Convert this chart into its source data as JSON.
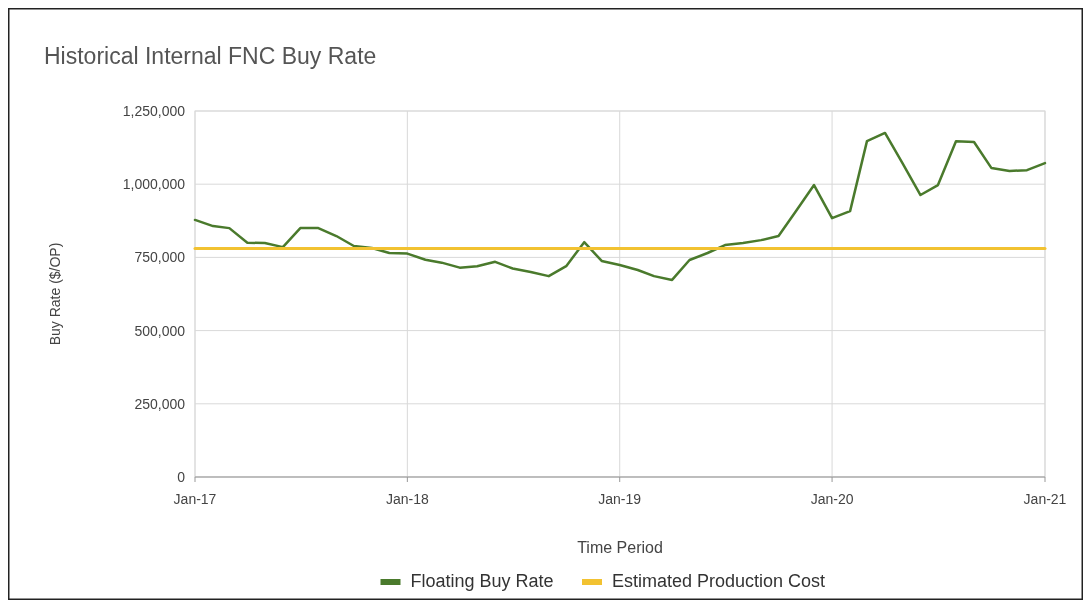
{
  "chart_data": {
    "type": "line",
    "title": "Historical Internal FNC Buy Rate",
    "xlabel": "Time Period",
    "ylabel": "Buy Rate ($/OP)",
    "x": [
      "2017-01",
      "2017-02",
      "2017-03",
      "2017-04",
      "2017-05",
      "2017-06",
      "2017-07",
      "2017-08",
      "2017-09",
      "2017-10",
      "2017-11",
      "2017-12",
      "2018-01",
      "2018-02",
      "2018-03",
      "2018-04",
      "2018-05",
      "2018-06",
      "2018-07",
      "2018-08",
      "2018-09",
      "2018-10",
      "2018-11",
      "2018-12",
      "2019-01",
      "2019-02",
      "2019-03",
      "2019-04",
      "2019-05",
      "2019-06",
      "2019-07",
      "2019-08",
      "2019-09",
      "2019-10",
      "2019-11",
      "2019-12",
      "2020-01",
      "2020-02",
      "2020-03",
      "2020-04",
      "2020-05",
      "2020-06",
      "2020-07",
      "2020-08",
      "2020-09",
      "2020-10",
      "2020-11",
      "2020-12",
      "2021-01"
    ],
    "series": [
      {
        "name": "Floating Buy Rate",
        "color": "#4a7a2c",
        "values": [
          878000,
          857000,
          850000,
          800000,
          799000,
          785000,
          850000,
          850000,
          823000,
          789000,
          782000,
          765000,
          763000,
          742000,
          732000,
          715000,
          720000,
          735000,
          712000,
          700000,
          686000,
          720000,
          802000,
          738000,
          724000,
          707000,
          686000,
          673000,
          741000,
          765000,
          792000,
          799000,
          809000,
          823000,
          911000,
          997000,
          884000,
          908000,
          1147000,
          1175000,
          1072000,
          963000,
          997000,
          1147000,
          1144000,
          1055000,
          1045000,
          1048000,
          1072000
        ]
      },
      {
        "name": "Estimated Production Cost",
        "color": "#f2c231",
        "x": [
          "2017-01",
          "2021-01"
        ],
        "values": [
          780000,
          780000
        ]
      }
    ],
    "xlim": [
      "2017-01",
      "2021-01"
    ],
    "xticks": [
      {
        "value": "2017-01",
        "label": "Jan-17"
      },
      {
        "value": "2018-01",
        "label": "Jan-18"
      },
      {
        "value": "2019-01",
        "label": "Jan-19"
      },
      {
        "value": "2020-01",
        "label": "Jan-20"
      },
      {
        "value": "2021-01",
        "label": "Jan-21"
      }
    ],
    "ylim": [
      0,
      1250000
    ],
    "yticks": [
      {
        "value": 0,
        "label": "0"
      },
      {
        "value": 250000,
        "label": "250,000"
      },
      {
        "value": 500000,
        "label": "500,000"
      },
      {
        "value": 750000,
        "label": "750,000"
      },
      {
        "value": 1000000,
        "label": "1,000,000"
      },
      {
        "value": 1250000,
        "label": "1,250,000"
      }
    ],
    "grid": true,
    "legend": "bottom",
    "marker": "none",
    "line_style": "solid"
  }
}
